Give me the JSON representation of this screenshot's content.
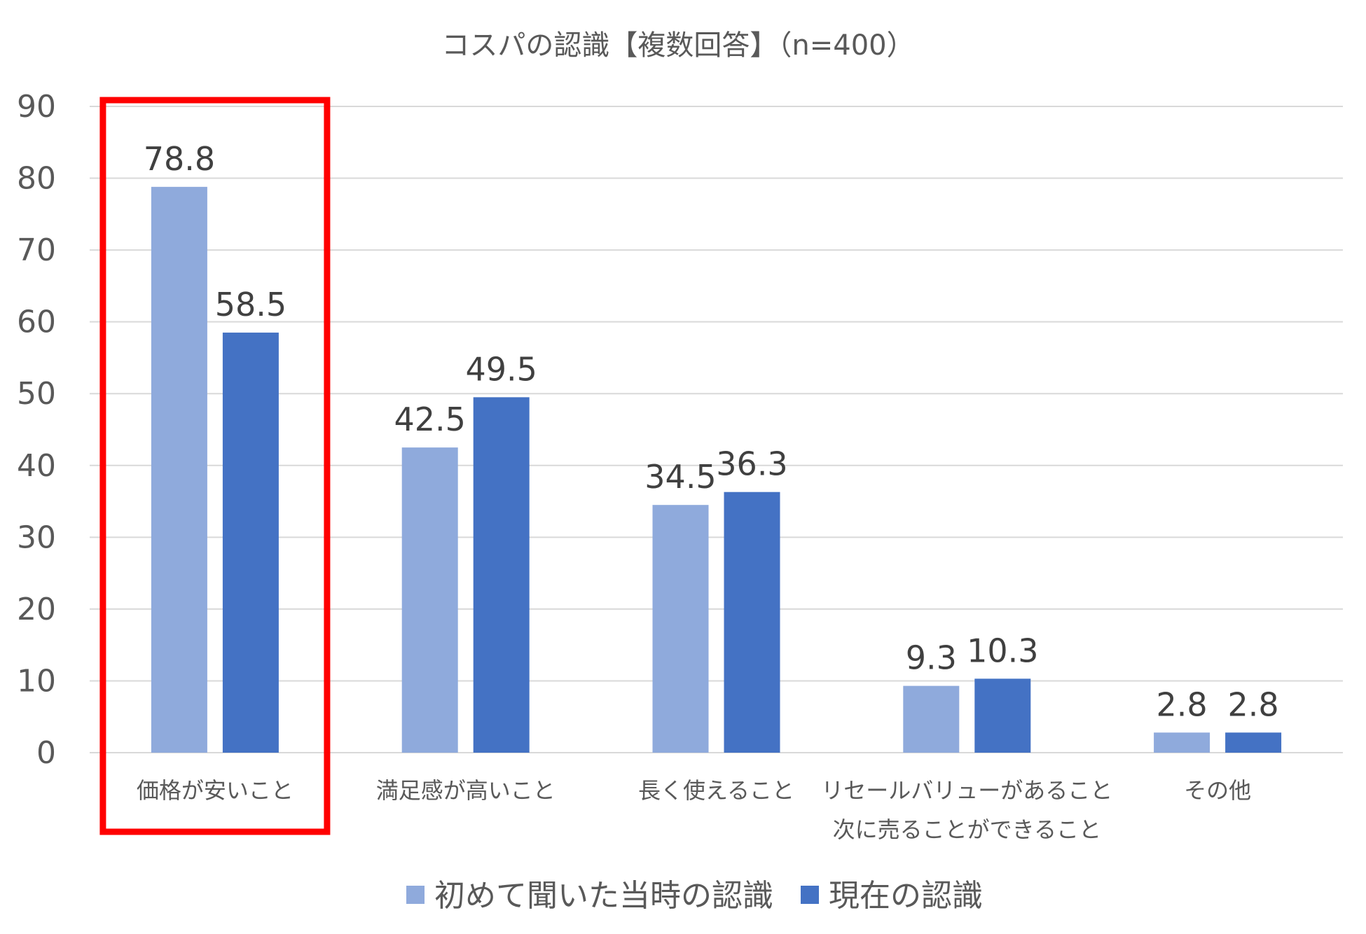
{
  "chart_data": {
    "type": "bar",
    "title": "コスパの認識【複数回答】（n=400）",
    "categories": [
      [
        "価格が安いこと"
      ],
      [
        "満足感が高いこと"
      ],
      [
        "長く使えること"
      ],
      [
        "リセールバリューがあること",
        "次に売ることができること"
      ],
      [
        "その他"
      ]
    ],
    "series": [
      {
        "name": "初めて聞いた当時の認識",
        "color": "#8faadc",
        "values": [
          78.8,
          42.5,
          34.5,
          9.3,
          2.8
        ]
      },
      {
        "name": "現在の認識",
        "color": "#4472c4",
        "values": [
          58.5,
          49.5,
          36.3,
          10.3,
          2.8
        ]
      }
    ],
    "ylim": [
      0,
      90
    ],
    "yticks": [
      0,
      10,
      20,
      30,
      40,
      50,
      60,
      70,
      80,
      90
    ],
    "xlabel": "",
    "ylabel": "",
    "grid": true,
    "legend": "bottom",
    "highlight": {
      "category_index": 0,
      "color": "#ff0000"
    }
  }
}
